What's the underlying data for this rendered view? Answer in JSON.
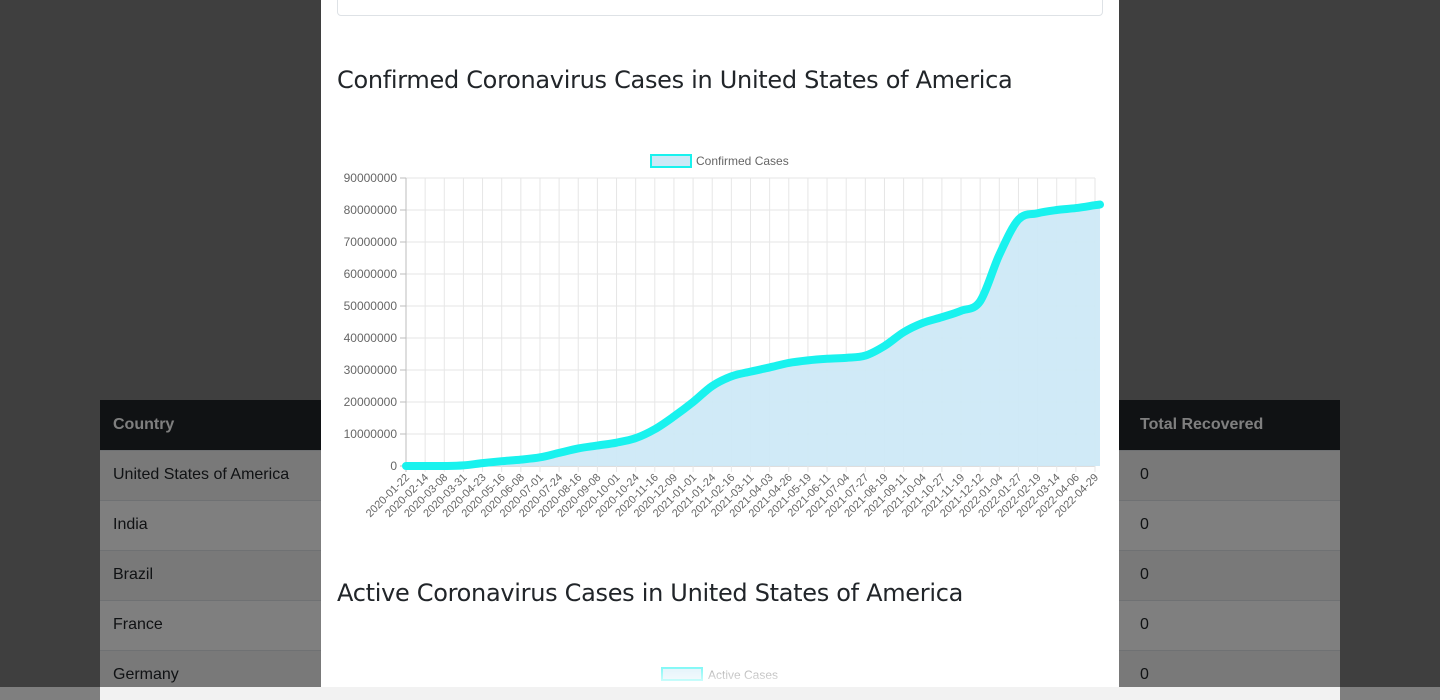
{
  "table": {
    "headers": {
      "country": "Country",
      "total_recovered": "Total Recovered"
    },
    "rows": [
      {
        "country": "United States of America",
        "recovered": "0"
      },
      {
        "country": "India",
        "recovered": "0"
      },
      {
        "country": "Brazil",
        "recovered": "0"
      },
      {
        "country": "France",
        "recovered": "0"
      },
      {
        "country": "Germany",
        "recovered": "0"
      }
    ]
  },
  "modal": {
    "confirmed_title": "Confirmed Coronavirus Cases in United States of America",
    "active_title": "Active Coronavirus Cases in United States of America"
  },
  "chart_data": [
    {
      "type": "line",
      "fill": true,
      "legend": "top",
      "grid": true,
      "line_color": "#19f2ee",
      "fill_color": "#cde9f7",
      "ylim": [
        0,
        90000000
      ],
      "y_ticks": [
        "90000000",
        "80000000",
        "70000000",
        "60000000",
        "50000000",
        "40000000",
        "30000000",
        "20000000",
        "10000000",
        "0"
      ],
      "x_ticks": [
        "2020-01-22",
        "2020-02-14",
        "2020-03-08",
        "2020-03-31",
        "2020-04-23",
        "2020-05-16",
        "2020-06-08",
        "2020-07-01",
        "2020-07-24",
        "2020-08-16",
        "2020-09-08",
        "2020-10-01",
        "2020-10-24",
        "2020-11-16",
        "2020-12-09",
        "2021-01-01",
        "2021-01-24",
        "2021-02-16",
        "2021-03-11",
        "2021-04-03",
        "2021-04-26",
        "2021-05-19",
        "2021-06-11",
        "2021-07-04",
        "2021-07-27",
        "2021-08-19",
        "2021-09-11",
        "2021-10-04",
        "2021-10-27",
        "2021-11-19",
        "2021-12-12",
        "2022-01-04",
        "2022-01-27",
        "2022-02-19",
        "2022-03-14",
        "2022-04-06",
        "2022-04-29"
      ],
      "series": [
        {
          "name": "Confirmed Cases",
          "x": [
            "2020-01-22",
            "2020-02-14",
            "2020-03-08",
            "2020-03-31",
            "2020-04-23",
            "2020-05-16",
            "2020-06-08",
            "2020-07-01",
            "2020-07-24",
            "2020-08-16",
            "2020-09-08",
            "2020-10-01",
            "2020-10-24",
            "2020-11-16",
            "2020-12-09",
            "2021-01-01",
            "2021-01-24",
            "2021-02-16",
            "2021-03-11",
            "2021-04-03",
            "2021-04-26",
            "2021-05-19",
            "2021-06-11",
            "2021-07-04",
            "2021-07-27",
            "2021-08-19",
            "2021-09-11",
            "2021-10-04",
            "2021-10-27",
            "2021-11-19",
            "2021-12-12",
            "2022-01-04",
            "2022-01-27",
            "2022-02-19",
            "2022-03-14",
            "2022-04-06",
            "2022-04-29",
            "2022-05-05"
          ],
          "y": [
            0,
            20,
            500,
            190000,
            900000,
            1500000,
            2000000,
            2700000,
            4100000,
            5500000,
            6400000,
            7300000,
            8700000,
            11500000,
            15500000,
            20000000,
            25000000,
            28000000,
            29500000,
            30800000,
            32200000,
            33000000,
            33500000,
            33800000,
            34500000,
            37500000,
            41800000,
            44700000,
            46500000,
            48500000,
            51500000,
            66000000,
            77000000,
            79000000,
            80000000,
            80600000,
            81500000,
            81700000
          ]
        }
      ]
    },
    {
      "type": "line",
      "legend": "top",
      "series": [
        {
          "name": "Active Cases"
        }
      ]
    }
  ]
}
